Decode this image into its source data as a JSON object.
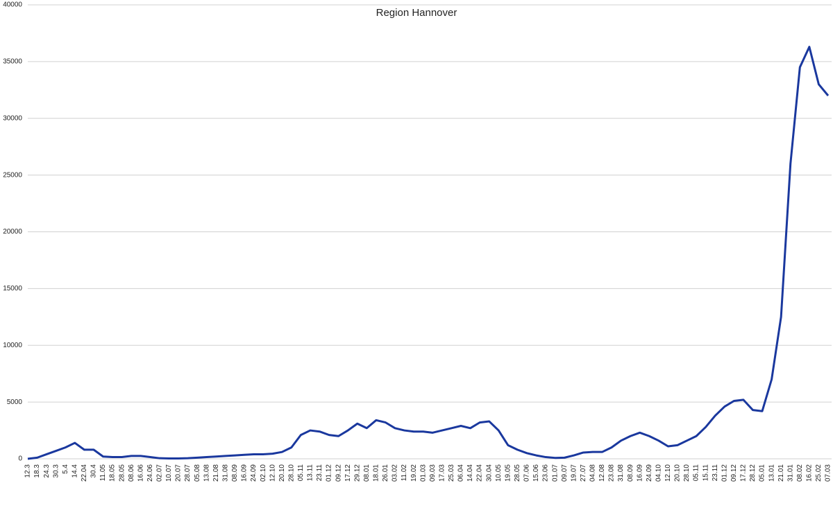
{
  "chart_data": {
    "type": "line",
    "title": "Region Hannover",
    "categories": [
      "12.3",
      "18.3",
      "24.3",
      "30.3",
      "5.4",
      "14.4",
      "22.04",
      "30.4",
      "11.05",
      "18.05",
      "28.05",
      "08.06",
      "16.06",
      "24.06",
      "02.07",
      "10.07",
      "20.07",
      "28.07",
      "05.08",
      "13.08",
      "21.08",
      "31.08",
      "08.09",
      "16.09",
      "24.09",
      "02.10",
      "12.10",
      "20.10",
      "28.10",
      "05.11",
      "13.11",
      "23.11",
      "01.12",
      "09.12",
      "17.12",
      "29.12",
      "08.01",
      "18.01",
      "26.01",
      "03.02",
      "11.02",
      "19.02",
      "01.03",
      "09.03",
      "17.03",
      "25.03",
      "06.04",
      "14.04",
      "22.04",
      "30.04",
      "10.05",
      "19.05",
      "28.05",
      "07.06",
      "15.06",
      "23.06",
      "01.07",
      "09.07",
      "19.07",
      "27.07",
      "04.08",
      "12.08",
      "23.08",
      "31.08",
      "08.09",
      "16.09",
      "24.09",
      "04.10",
      "12.10",
      "20.10",
      "28.10",
      "05.11",
      "15.11",
      "23.11",
      "01.12",
      "09.12",
      "17.12",
      "28.12",
      "05.01",
      "13.01",
      "21.01",
      "31.01",
      "08.02",
      "16.02",
      "25.02",
      "07.03"
    ],
    "series": [
      {
        "color": "#1a389e",
        "values": [
          0,
          100,
          400,
          700,
          1000,
          1400,
          800,
          800,
          200,
          150,
          150,
          250,
          250,
          150,
          50,
          30,
          30,
          50,
          100,
          150,
          200,
          250,
          300,
          350,
          400,
          400,
          450,
          600,
          1000,
          2100,
          2500,
          2400,
          2100,
          2000,
          2500,
          3100,
          2700,
          3400,
          3200,
          2700,
          2500,
          2400,
          2400,
          2300,
          2500,
          2700,
          2900,
          2700,
          3200,
          3300,
          2500,
          1200,
          800,
          500,
          300,
          150,
          80,
          100,
          300,
          550,
          600,
          600,
          1000,
          1600,
          2000,
          2300,
          2000,
          1600,
          1100,
          1200,
          1600,
          2000,
          2800,
          3800,
          4600,
          5100,
          5200,
          4300,
          4200,
          7000,
          12500,
          26000,
          34500,
          36300,
          33000,
          32000
        ]
      }
    ],
    "ylim": [
      0,
      40000
    ],
    "yticks": [
      0,
      5000,
      10000,
      15000,
      20000,
      25000,
      30000,
      35000,
      40000
    ],
    "grid": true
  }
}
